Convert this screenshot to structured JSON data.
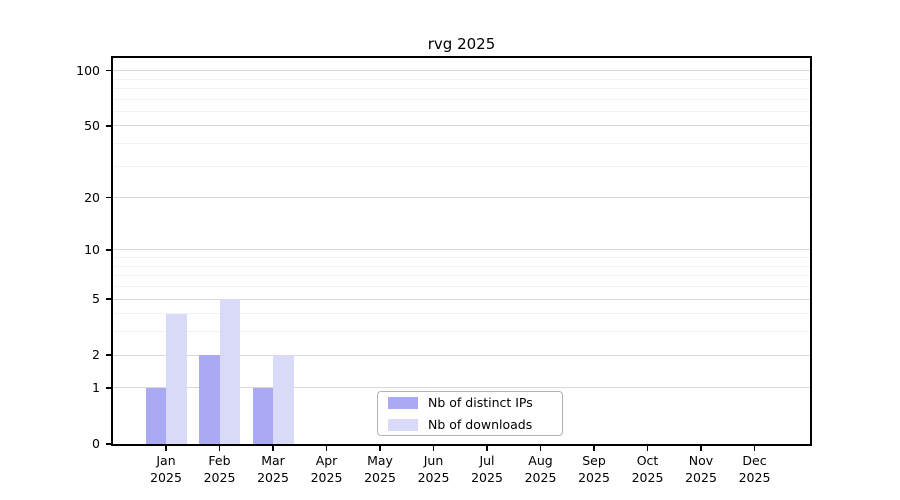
{
  "chart_data": {
    "type": "bar",
    "title": "rvg 2025",
    "categories": [
      "Jan",
      "Feb",
      "Mar",
      "Apr",
      "May",
      "Jun",
      "Jul",
      "Aug",
      "Sep",
      "Oct",
      "Nov",
      "Dec"
    ],
    "category_year": "2025",
    "series": [
      {
        "name": "Nb of distinct IPs",
        "color": "#a9a9f4",
        "values": [
          1,
          2,
          1,
          0,
          0,
          0,
          0,
          0,
          0,
          0,
          0,
          0
        ]
      },
      {
        "name": "Nb of downloads",
        "color": "#d9d9f8",
        "values": [
          4,
          5,
          2,
          0,
          0,
          0,
          0,
          0,
          0,
          0,
          0,
          0
        ]
      }
    ],
    "yscale": "log1p",
    "ylim": [
      0,
      117
    ],
    "y_major_ticks": [
      0,
      1,
      2,
      5,
      10,
      20,
      50,
      100
    ],
    "y_minor_gridlines": [
      3,
      4,
      6,
      7,
      8,
      9,
      30,
      40,
      60,
      70,
      80,
      90
    ],
    "grid": true,
    "legend_position": "lower center",
    "colors": {
      "major_grid": "#d8d8d8",
      "minor_grid": "#f2f2f2",
      "spine": "#000000",
      "text": "#000000",
      "legend_border": "#b3b3b3",
      "background": "#ffffff"
    }
  }
}
